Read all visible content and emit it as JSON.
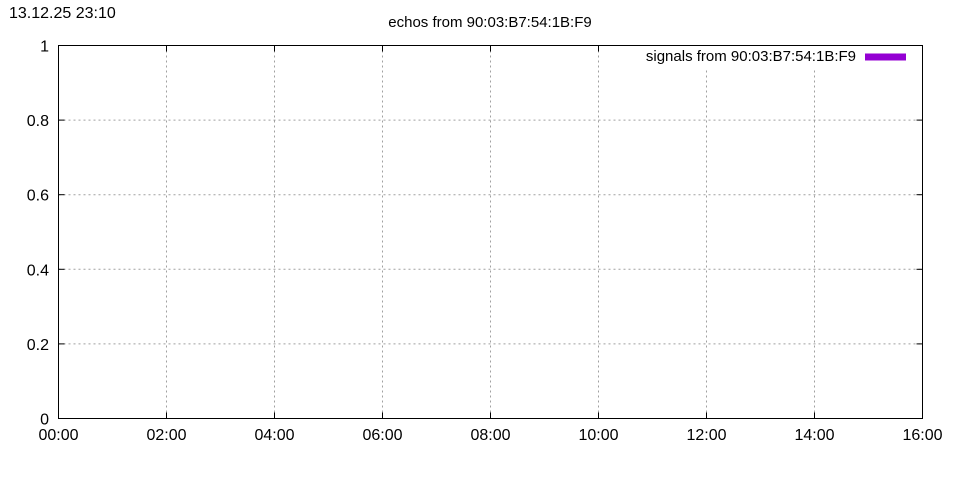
{
  "timestamp": "13.12.25 23:10",
  "chart_data": {
    "type": "line",
    "title": "echos from 90:03:B7:54:1B:F9",
    "xlabel": "",
    "ylabel": "",
    "x_ticks": [
      "00:00",
      "02:00",
      "04:00",
      "06:00",
      "08:00",
      "10:00",
      "12:00",
      "14:00",
      "16:00"
    ],
    "y_ticks": [
      "0",
      "0.2",
      "0.4",
      "0.6",
      "0.8",
      "1"
    ],
    "xlim": [
      "00:00",
      "16:00"
    ],
    "ylim": [
      0,
      1
    ],
    "grid": true,
    "legend_placement": "top-right",
    "series": [
      {
        "name": "signals from 90:03:B7:54:1B:F9",
        "color": "#9400d3",
        "points": []
      }
    ]
  }
}
